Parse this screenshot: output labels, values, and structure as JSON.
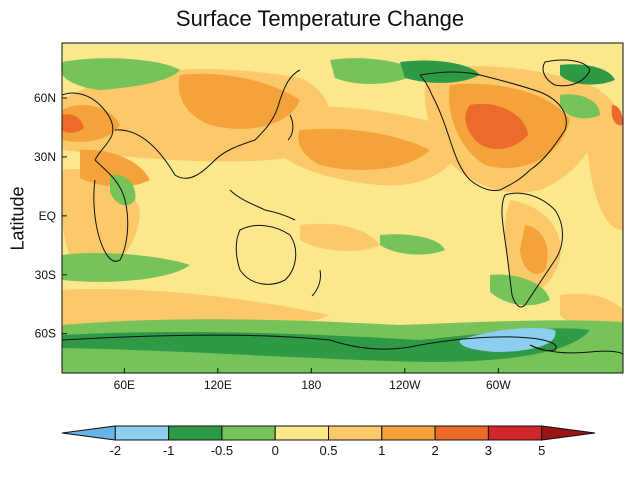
{
  "title": "Surface Temperature Change",
  "ylabel": "Latitude",
  "y_ticks": [
    {
      "label": "60N",
      "lat": 60
    },
    {
      "label": "30N",
      "lat": 30
    },
    {
      "label": "EQ",
      "lat": 0
    },
    {
      "label": "30S",
      "lat": -30
    },
    {
      "label": "60S",
      "lat": -60
    }
  ],
  "x_ticks": [
    {
      "label": "60E",
      "lon": 60
    },
    {
      "label": "120E",
      "lon": 120
    },
    {
      "label": "180",
      "lon": 180
    },
    {
      "label": "120W",
      "lon": 240
    },
    {
      "label": "60W",
      "lon": 300
    }
  ],
  "lon_range": [
    20,
    380
  ],
  "lat_range": [
    -80,
    88
  ],
  "colorbar": {
    "labels": [
      "-2",
      "-1",
      "-0.5",
      "0",
      "0.5",
      "1",
      "2",
      "3",
      "5"
    ],
    "colors": [
      "#6ab3e6",
      "#8dcdee",
      "#2e9a45",
      "#76c35a",
      "#fbe88c",
      "#fbc86a",
      "#f4a23a",
      "#ec6a2a",
      "#d0282a",
      "#9c1414"
    ]
  },
  "colors": {
    "cold": "#8dcdee",
    "green_dark": "#2e9a45",
    "green": "#76c35a",
    "yellow": "#fbe88c",
    "orange_light": "#fbc86a",
    "orange": "#f4a23a",
    "orange_dark": "#ec6a2a",
    "coast": "#111111"
  }
}
